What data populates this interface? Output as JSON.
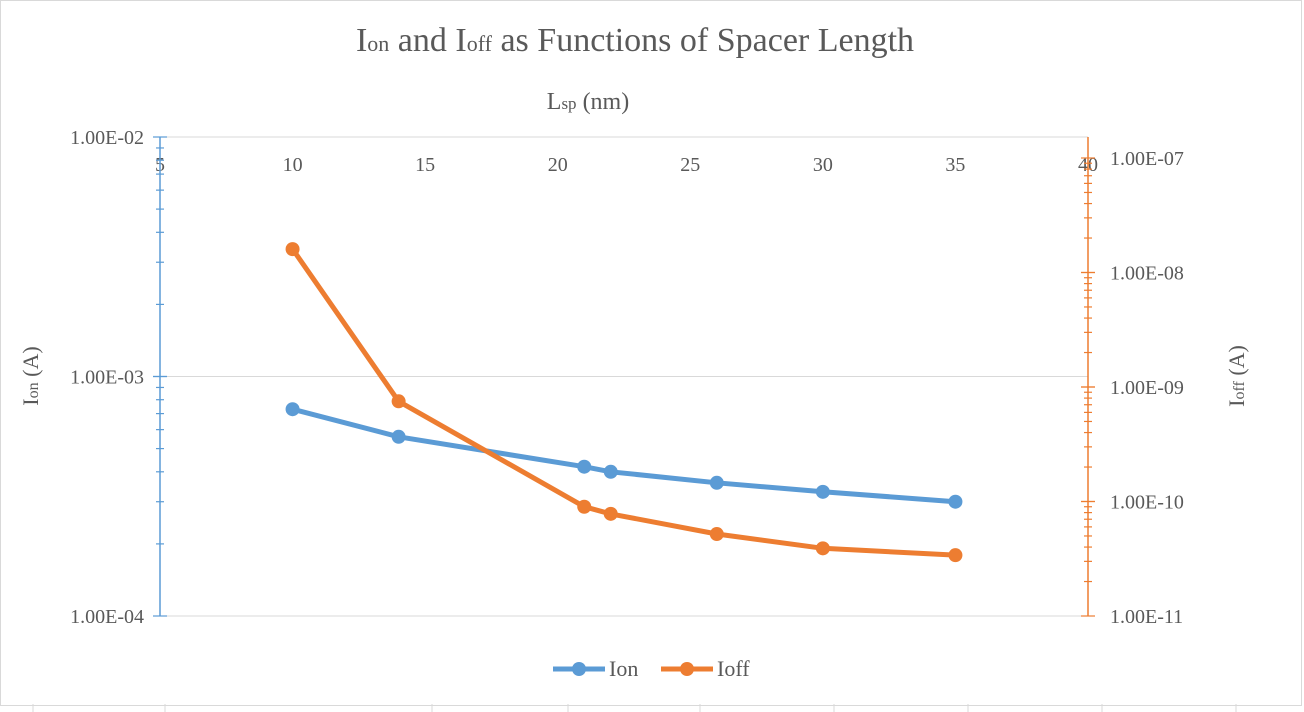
{
  "chart_data": {
    "type": "line",
    "title": {
      "main_1": "I",
      "sub_1": "on",
      "main_2": " and I",
      "sub_2": "off",
      "main_3": " as Functions of Spacer Length"
    },
    "xlabel": {
      "main": "L",
      "sub": "sp",
      "rest": " (nm)"
    },
    "ylabel_left": {
      "main": "I",
      "sub": "on",
      "rest": " (A)"
    },
    "ylabel_right": {
      "main": "I",
      "sub": "off",
      "rest": " (A)"
    },
    "x_axis": {
      "position": "top",
      "range": [
        5,
        40
      ],
      "ticks": [
        "5",
        "10",
        "15",
        "20",
        "25",
        "30",
        "35",
        "40"
      ]
    },
    "y_left": {
      "scale": "log",
      "range": [
        0.0001,
        0.01
      ],
      "ticks": [
        "1.00E-04",
        "1.00E-03",
        "1.00E-02"
      ]
    },
    "y_right": {
      "scale": "log",
      "range": [
        1e-11,
        1e-07
      ],
      "ticks": [
        "1.00E-11",
        "1.00E-10",
        "1.00E-09",
        "1.00E-08",
        "1.00E-07"
      ]
    },
    "grid": "horizontal major lines on left axis",
    "legend": {
      "position": "bottom"
    },
    "x": [
      10,
      14,
      21,
      22,
      26,
      30,
      35
    ],
    "series": [
      {
        "name": "Ion",
        "axis": "left",
        "color": "#5b9bd5",
        "values": [
          0.00073,
          0.00056,
          0.00042,
          0.0004,
          0.00036,
          0.00033,
          0.0003
        ]
      },
      {
        "name": "Ioff",
        "axis": "right",
        "color": "#ed7d31",
        "values": [
          1.6e-08,
          7.5e-10,
          9e-11,
          7.8e-11,
          5.2e-11,
          3.9e-11,
          3.4e-11
        ]
      }
    ]
  }
}
